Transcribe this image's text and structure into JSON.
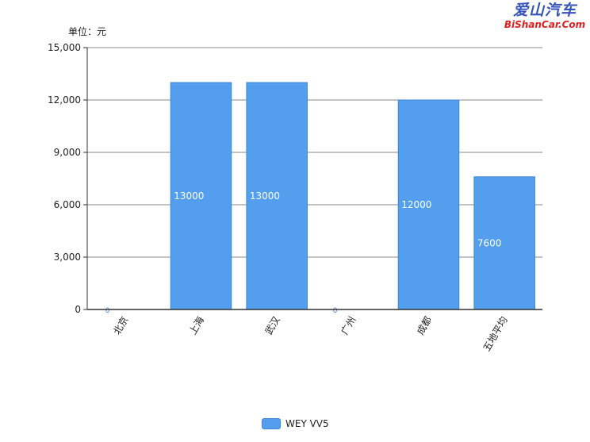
{
  "chart_data": {
    "type": "bar",
    "unit_label": "单位：元",
    "categories": [
      "北京",
      "上海",
      "武汉",
      "广州",
      "成都",
      "五地平均"
    ],
    "series": [
      {
        "name": "WEY VV5",
        "values": [
          0,
          13000,
          13000,
          0,
          12000,
          7600
        ]
      }
    ],
    "data_labels": [
      "0",
      "13000",
      "13000",
      "0",
      "12000",
      "7600"
    ],
    "ylim": [
      0,
      15000
    ],
    "yticks": [
      0,
      3000,
      6000,
      9000,
      12000,
      15000
    ],
    "ytick_labels": [
      "0",
      "3,000",
      "6,000",
      "9,000",
      "12,000",
      "15,000"
    ],
    "grid": true,
    "legend_position": "bottom-center",
    "bar_color": "#539fee"
  },
  "watermark": {
    "text_cn": "爱山汽车",
    "text_en": "BiShanCar.Com"
  }
}
